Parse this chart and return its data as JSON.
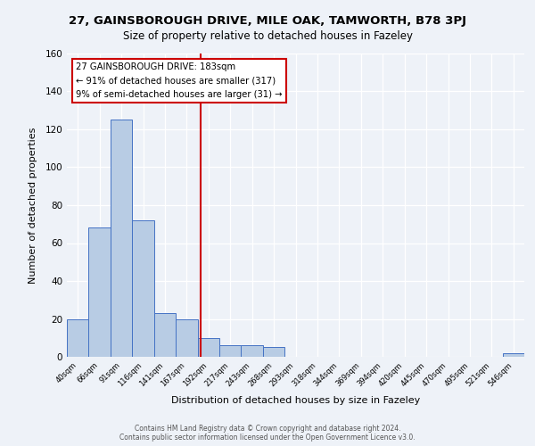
{
  "title_line1": "27, GAINSBOROUGH DRIVE, MILE OAK, TAMWORTH, B78 3PJ",
  "title_line2": "Size of property relative to detached houses in Fazeley",
  "xlabel": "Distribution of detached houses by size in Fazeley",
  "ylabel": "Number of detached properties",
  "bar_labels": [
    "40sqm",
    "66sqm",
    "91sqm",
    "116sqm",
    "141sqm",
    "167sqm",
    "192sqm",
    "217sqm",
    "243sqm",
    "268sqm",
    "293sqm",
    "318sqm",
    "344sqm",
    "369sqm",
    "394sqm",
    "420sqm",
    "445sqm",
    "470sqm",
    "495sqm",
    "521sqm",
    "546sqm"
  ],
  "bar_values": [
    20,
    68,
    125,
    72,
    23,
    20,
    10,
    6,
    6,
    5,
    0,
    0,
    0,
    0,
    0,
    0,
    0,
    0,
    0,
    0,
    2
  ],
  "bar_color": "#b8cce4",
  "bar_edge_color": "#4472c4",
  "marker_label": "27 GAINSBOROUGH DRIVE: 183sqm",
  "annotation_line1": "← 91% of detached houses are smaller (317)",
  "annotation_line2": "9% of semi-detached houses are larger (31) →",
  "annotation_box_color": "#ffffff",
  "annotation_box_edge": "#cc0000",
  "vline_color": "#cc0000",
  "vline_x": 5.64,
  "ylim": [
    0,
    160
  ],
  "yticks": [
    0,
    20,
    40,
    60,
    80,
    100,
    120,
    140,
    160
  ],
  "footer1": "Contains HM Land Registry data © Crown copyright and database right 2024.",
  "footer2": "Contains public sector information licensed under the Open Government Licence v3.0.",
  "bg_color": "#eef2f8",
  "plot_bg_color": "#eef2f8",
  "title1_fontsize": 9.5,
  "title2_fontsize": 8.5
}
